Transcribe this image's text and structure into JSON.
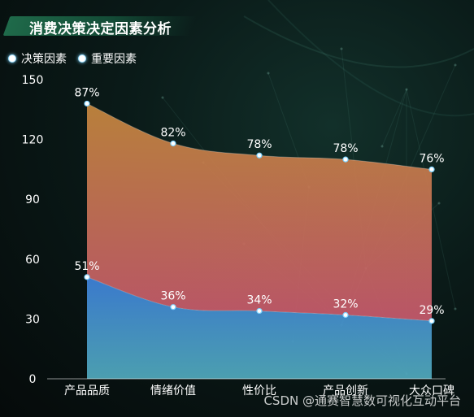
{
  "title": "消费决策决定因素分析",
  "watermark": "CSDN @通赛智慧数可视化互动平台",
  "chart_data": {
    "type": "area",
    "categories": [
      "产品品质",
      "情绪价值",
      "性价比",
      "产品创新",
      "大众口碑"
    ],
    "series": [
      {
        "name": "决策因素",
        "values": [
          51,
          36,
          34,
          32,
          29
        ],
        "labels": [
          "51%",
          "36%",
          "34%",
          "32%",
          "29%"
        ]
      },
      {
        "name": "重要因素",
        "values": [
          87,
          82,
          78,
          78,
          76
        ],
        "labels": [
          "87%",
          "82%",
          "78%",
          "78%",
          "76%"
        ]
      }
    ],
    "stacked": true,
    "ylim": [
      0,
      150
    ],
    "yticks": [
      0,
      30,
      60,
      90,
      120,
      150
    ],
    "grid": false,
    "legend_position": "top-left",
    "colors": {
      "bottom_top": "#3d7fd6",
      "bottom_bottom": "#4fa6b8",
      "top_top": "#c7893e",
      "top_bottom": "#c85a6e",
      "text": "#ffffff"
    }
  }
}
